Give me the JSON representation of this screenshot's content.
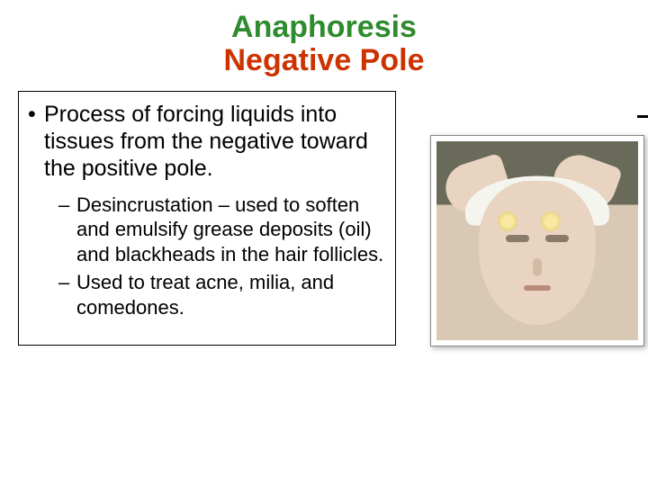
{
  "title": {
    "line1": "Anaphoresis",
    "line2": "Negative Pole",
    "line1_color": "#2e8b2e",
    "line2_color": "#cc3300"
  },
  "bullets": {
    "main": "Process of forcing liquids into tissues from the negative toward the positive pole.",
    "sub": [
      "Desincrustation – used to soften and emulsify grease deposits (oil) and blackheads in the hair follicles.",
      "Used to treat acne, milia, and comedones."
    ]
  },
  "image": {
    "alt": "facial-treatment-photo",
    "frame_border": "#888888",
    "shadow": "rgba(0,0,0,0.3)"
  }
}
